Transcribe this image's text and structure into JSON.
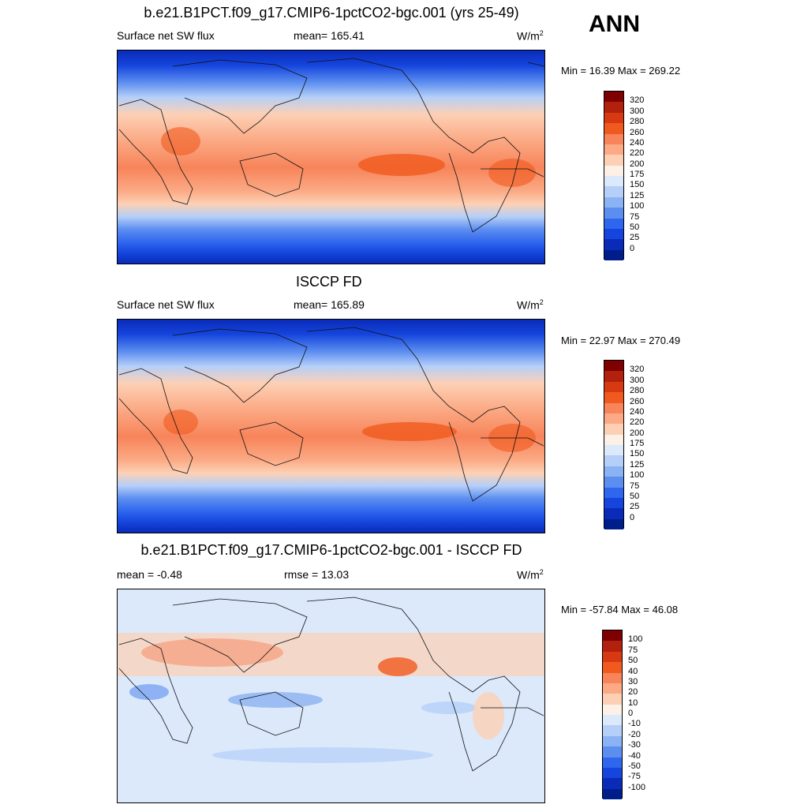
{
  "season": "ANN",
  "panels": [
    {
      "title": "b.e21.B1PCT.f09_g17.CMIP6-1pctCO2-bgc.001 (yrs 25-49)",
      "left": "Surface net SW flux",
      "center": "mean= 165.41",
      "units": "W/m",
      "units_sup": "2",
      "minmax": "Min =  16.39 Max = 269.22",
      "colorbar": {
        "labels": [
          "320",
          "300",
          "280",
          "260",
          "240",
          "220",
          "200",
          "175",
          "150",
          "125",
          "100",
          "75",
          "50",
          "25",
          "0"
        ],
        "colors": [
          "#7f0000",
          "#b2200e",
          "#d73a12",
          "#f05a1e",
          "#f7845a",
          "#fbaa85",
          "#fdd0b5",
          "#fdf0e6",
          "#dbe9fb",
          "#b5cff8",
          "#8bb2f3",
          "#5c8ef0",
          "#2f66ee",
          "#1545dd",
          "#0a2bb8",
          "#001e8a"
        ]
      }
    },
    {
      "title": "ISCCP FD",
      "left": "Surface net SW flux",
      "center": "mean= 165.89",
      "units": "W/m",
      "units_sup": "2",
      "minmax": "Min =  22.97 Max = 270.49",
      "colorbar": {
        "labels": [
          "320",
          "300",
          "280",
          "260",
          "240",
          "220",
          "200",
          "175",
          "150",
          "125",
          "100",
          "75",
          "50",
          "25",
          "0"
        ],
        "colors": [
          "#7f0000",
          "#b2200e",
          "#d73a12",
          "#f05a1e",
          "#f7845a",
          "#fbaa85",
          "#fdd0b5",
          "#fdf0e6",
          "#dbe9fb",
          "#b5cff8",
          "#8bb2f3",
          "#5c8ef0",
          "#2f66ee",
          "#1545dd",
          "#0a2bb8",
          "#001e8a"
        ]
      }
    },
    {
      "title": "b.e21.B1PCT.f09_g17.CMIP6-1pctCO2-bgc.001 - ISCCP FD",
      "left": "mean =  -0.48",
      "center": "rmse =  13.03",
      "units": "W/m",
      "units_sup": "2",
      "minmax": "Min = -57.84 Max =  46.08",
      "colorbar": {
        "labels": [
          "100",
          "75",
          "50",
          "40",
          "30",
          "20",
          "10",
          "0",
          "-10",
          "-20",
          "-30",
          "-40",
          "-50",
          "-75",
          "-100"
        ],
        "colors": [
          "#7f0000",
          "#b2200e",
          "#d73a12",
          "#f05a1e",
          "#f7845a",
          "#fbaa85",
          "#fdd0b5",
          "#fdf0e6",
          "#dbe9fb",
          "#b5cff8",
          "#8bb2f3",
          "#5c8ef0",
          "#2f66ee",
          "#1545dd",
          "#0a2bb8",
          "#001e8a"
        ]
      }
    }
  ]
}
